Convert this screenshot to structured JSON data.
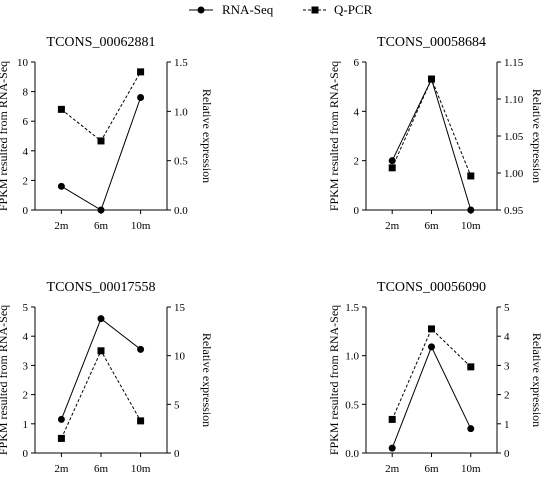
{
  "legend": {
    "items": [
      {
        "label": "RNA-Seq",
        "marker": "circle",
        "line": "solid"
      },
      {
        "label": "Q-PCR",
        "marker": "square",
        "line": "dashed"
      }
    ]
  },
  "colors": {
    "series": "#000000",
    "background": "#ffffff"
  },
  "chart_data": [
    {
      "type": "line",
      "title": "TCONS_00062881",
      "categories": [
        "2m",
        "6m",
        "10m"
      ],
      "ylabel": "FPKM resulted from RNA-Seq",
      "y2label": "Relative expression",
      "ylim": [
        0,
        10
      ],
      "yticks": [
        "0",
        "2",
        "4",
        "6",
        "8",
        "10"
      ],
      "y2lim": [
        0,
        1.5
      ],
      "y2ticks": [
        "0.0",
        "0.5",
        "1.0",
        "1.5"
      ],
      "series": [
        {
          "name": "RNA-Seq",
          "axis": "left",
          "values": [
            1.6,
            0.0,
            7.6
          ]
        },
        {
          "name": "Q-PCR",
          "axis": "right",
          "values": [
            1.02,
            0.7,
            1.4
          ]
        }
      ]
    },
    {
      "type": "line",
      "title": "TCONS_00058684",
      "categories": [
        "2m",
        "6m",
        "10m"
      ],
      "ylabel": "FPKM resulted from RNA-Seq",
      "y2label": "Relative expression",
      "ylim": [
        0,
        6
      ],
      "yticks": [
        "0",
        "2",
        "4",
        "6"
      ],
      "y2lim": [
        0.95,
        1.15
      ],
      "y2ticks": [
        "0.95",
        "1.00",
        "1.05",
        "1.10",
        "1.15"
      ],
      "series": [
        {
          "name": "RNA-Seq",
          "axis": "left",
          "values": [
            2.0,
            5.3,
            0.0
          ]
        },
        {
          "name": "Q-PCR",
          "axis": "right",
          "values": [
            1.007,
            1.127,
            0.996
          ]
        }
      ]
    },
    {
      "type": "line",
      "title": "TCONS_00017558",
      "categories": [
        "2m",
        "6m",
        "10m"
      ],
      "ylabel": "FPKM resulted from RNA-Seq",
      "y2label": "Relative expression",
      "ylim": [
        0,
        5
      ],
      "yticks": [
        "0",
        "1",
        "2",
        "3",
        "4",
        "5"
      ],
      "y2lim": [
        0,
        15
      ],
      "y2ticks": [
        "0",
        "5",
        "10",
        "15"
      ],
      "series": [
        {
          "name": "RNA-Seq",
          "axis": "left",
          "values": [
            1.15,
            4.6,
            3.55
          ]
        },
        {
          "name": "Q-PCR",
          "axis": "right",
          "values": [
            1.5,
            10.5,
            3.3
          ]
        }
      ]
    },
    {
      "type": "line",
      "title": "TCONS_00056090",
      "categories": [
        "2m",
        "6m",
        "10m"
      ],
      "ylabel": "FPKM resulted from RNA-Seq",
      "y2label": "Relative expression",
      "ylim": [
        0,
        1.5
      ],
      "yticks": [
        "0.0",
        "0.5",
        "1.0",
        "1.5"
      ],
      "y2lim": [
        0,
        5
      ],
      "y2ticks": [
        "0",
        "1",
        "2",
        "3",
        "4",
        "5"
      ],
      "series": [
        {
          "name": "RNA-Seq",
          "axis": "left",
          "values": [
            0.05,
            1.09,
            0.25
          ]
        },
        {
          "name": "Q-PCR",
          "axis": "right",
          "values": [
            1.15,
            4.25,
            2.95
          ]
        }
      ]
    }
  ]
}
